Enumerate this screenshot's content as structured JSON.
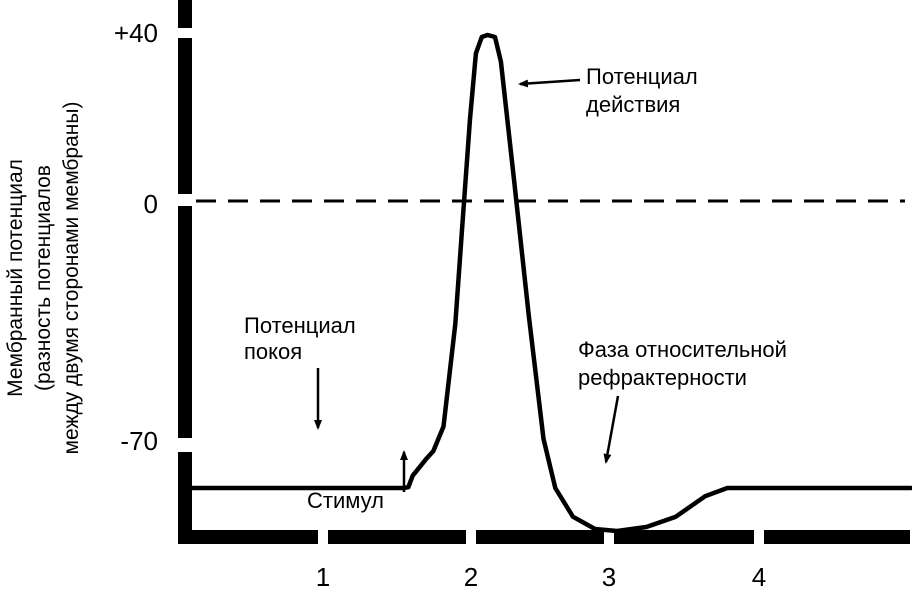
{
  "chart_data": {
    "type": "line",
    "title": "",
    "ylabel_lines": [
      "Мембранный потенциал",
      "(разность потенциалов",
      "между двумя сторонами мембраны)"
    ],
    "xlabel": "",
    "y_ticks": [
      "+40",
      "0",
      "-70"
    ],
    "x_ticks": [
      "1",
      "2",
      "3",
      "4"
    ],
    "ylim": [
      -95,
      45
    ],
    "xlim": [
      0,
      5
    ],
    "grid": false,
    "reference_line": {
      "y": 0,
      "style": "dashed"
    },
    "series": [
      {
        "name": "",
        "points": [
          [
            0.1,
            -70
          ],
          [
            0.9,
            -70
          ],
          [
            1.55,
            -70
          ],
          [
            1.58,
            -69.8
          ],
          [
            1.61,
            -67
          ],
          [
            1.7,
            -63
          ],
          [
            1.75,
            -61
          ],
          [
            1.82,
            -55
          ],
          [
            1.9,
            -30
          ],
          [
            1.95,
            -5
          ],
          [
            2.0,
            20
          ],
          [
            2.04,
            36
          ],
          [
            2.08,
            40
          ],
          [
            2.12,
            40.5
          ],
          [
            2.17,
            40
          ],
          [
            2.21,
            34
          ],
          [
            2.3,
            5
          ],
          [
            2.4,
            -28
          ],
          [
            2.5,
            -58
          ],
          [
            2.58,
            -70
          ],
          [
            2.7,
            -77
          ],
          [
            2.85,
            -80
          ],
          [
            3.0,
            -80.5
          ],
          [
            3.2,
            -79.5
          ],
          [
            3.4,
            -77
          ],
          [
            3.6,
            -72
          ],
          [
            3.75,
            -70
          ],
          [
            4.2,
            -70
          ],
          [
            5.0,
            -70
          ]
        ]
      }
    ],
    "annotations": [
      {
        "id": "rest",
        "lines": [
          "Потенциал",
          "покоя"
        ]
      },
      {
        "id": "stim",
        "lines": [
          "Стимул"
        ]
      },
      {
        "id": "ap",
        "lines": [
          "Потенциал",
          "действия"
        ]
      },
      {
        "id": "refr",
        "lines": [
          "Фаза относительной",
          "рефрактерности"
        ]
      }
    ]
  }
}
